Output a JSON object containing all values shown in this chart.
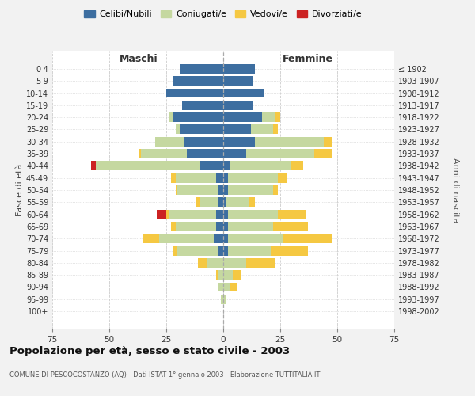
{
  "age_groups": [
    "0-4",
    "5-9",
    "10-14",
    "15-19",
    "20-24",
    "25-29",
    "30-34",
    "35-39",
    "40-44",
    "45-49",
    "50-54",
    "55-59",
    "60-64",
    "65-69",
    "70-74",
    "75-79",
    "80-84",
    "85-89",
    "90-94",
    "95-99",
    "100+"
  ],
  "birth_years": [
    "1998-2002",
    "1993-1997",
    "1988-1992",
    "1983-1987",
    "1978-1982",
    "1973-1977",
    "1968-1972",
    "1963-1967",
    "1958-1962",
    "1953-1957",
    "1948-1952",
    "1943-1947",
    "1938-1942",
    "1933-1937",
    "1928-1932",
    "1923-1927",
    "1918-1922",
    "1913-1917",
    "1908-1912",
    "1903-1907",
    "≤ 1902"
  ],
  "males": {
    "celibi": [
      19,
      22,
      25,
      18,
      22,
      19,
      17,
      16,
      10,
      3,
      2,
      2,
      3,
      3,
      4,
      2,
      0,
      0,
      0,
      0,
      0
    ],
    "coniugati": [
      0,
      0,
      0,
      0,
      2,
      2,
      13,
      20,
      46,
      18,
      18,
      8,
      21,
      18,
      24,
      18,
      7,
      2,
      2,
      1,
      0
    ],
    "vedovi": [
      0,
      0,
      0,
      0,
      0,
      0,
      0,
      1,
      0,
      2,
      1,
      2,
      1,
      2,
      7,
      2,
      4,
      1,
      0,
      0,
      0
    ],
    "divorziati": [
      0,
      0,
      0,
      0,
      0,
      0,
      0,
      0,
      2,
      0,
      0,
      0,
      4,
      0,
      0,
      0,
      0,
      0,
      0,
      0,
      0
    ]
  },
  "females": {
    "nubili": [
      14,
      13,
      18,
      13,
      17,
      12,
      14,
      10,
      3,
      2,
      2,
      1,
      2,
      2,
      2,
      2,
      0,
      0,
      0,
      0,
      0
    ],
    "coniugate": [
      0,
      0,
      0,
      0,
      6,
      10,
      30,
      30,
      27,
      22,
      20,
      10,
      22,
      20,
      24,
      19,
      10,
      4,
      3,
      1,
      0
    ],
    "vedove": [
      0,
      0,
      0,
      0,
      2,
      2,
      4,
      8,
      5,
      4,
      2,
      3,
      12,
      15,
      22,
      16,
      13,
      4,
      3,
      0,
      0
    ],
    "divorziate": [
      0,
      0,
      0,
      0,
      0,
      0,
      0,
      0,
      0,
      0,
      0,
      0,
      0,
      0,
      0,
      0,
      0,
      0,
      0,
      0,
      0
    ]
  },
  "colors": {
    "celibi_nubili": "#3d6ea0",
    "coniugati": "#c5d8a0",
    "vedovi": "#f5c842",
    "divorziati": "#cc2222"
  },
  "title": "Popolazione per età, sesso e stato civile - 2003",
  "subtitle": "COMUNE DI PESCOCOSTANZO (AQ) - Dati ISTAT 1° gennaio 2003 - Elaborazione TUTTITALIA.IT",
  "xlabel_left": "Maschi",
  "xlabel_right": "Femmine",
  "ylabel_left": "Fasce di età",
  "ylabel_right": "Anni di nascita",
  "xlim": 75,
  "legend_labels": [
    "Celibi/Nubili",
    "Coniugati/e",
    "Vedovi/e",
    "Divorziati/e"
  ],
  "bg_color": "#f2f2f2",
  "plot_bg_color": "#ffffff",
  "grid_color": "#cccccc"
}
